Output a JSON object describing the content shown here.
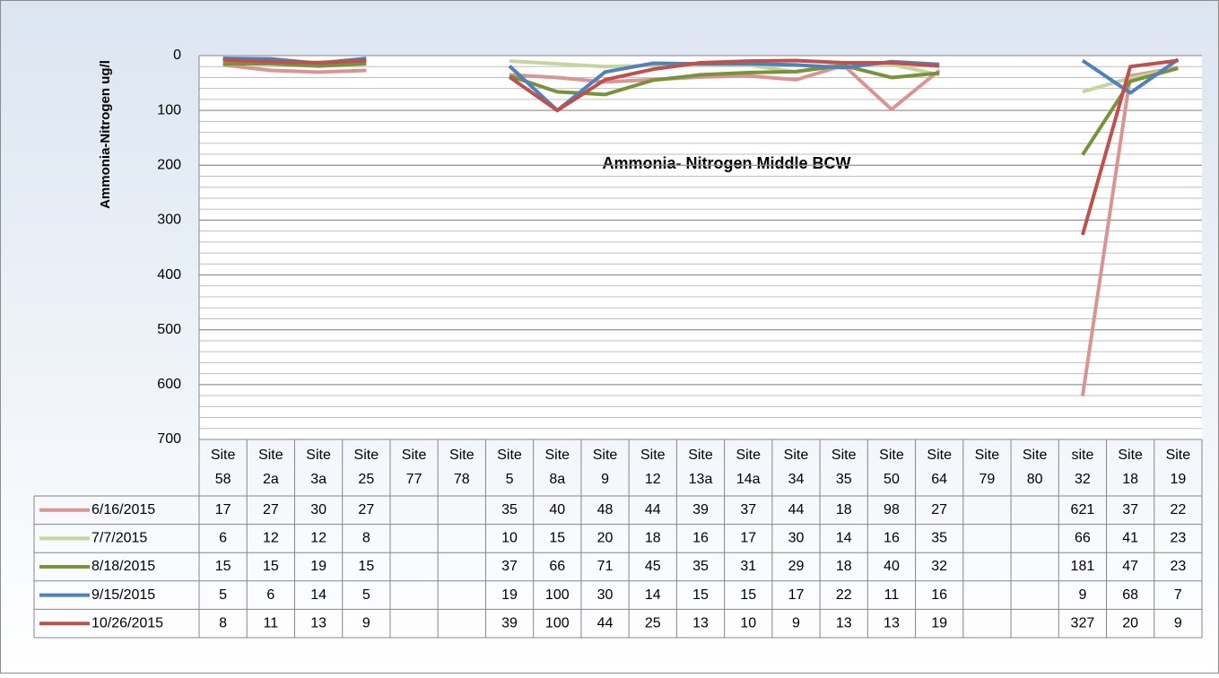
{
  "chart_data": {
    "type": "line",
    "title": "Ammonia- Nitrogen Middle BCW",
    "y_label": "Ammonia-Nitrogen ug/l",
    "categories": [
      "Site 58",
      "Site 2a",
      "Site 3a",
      "Site 25",
      "Site 77",
      "Site 78",
      "Site 5",
      "Site 8a",
      "Site 9",
      "Site 12",
      "Site 13a",
      "Site 14a",
      "Site 34",
      "Site 35",
      "Site 50",
      "Site 64",
      "Site 79",
      "Site 80",
      "site 32",
      "Site 18",
      "Site 19"
    ],
    "series": [
      {
        "name": "6/16/2015",
        "color": "#d99594",
        "values": [
          17,
          27,
          30,
          27,
          null,
          null,
          35,
          40,
          48,
          44,
          39,
          37,
          44,
          18,
          98,
          27,
          null,
          null,
          621,
          37,
          22
        ]
      },
      {
        "name": "7/7/2015",
        "color": "#c3d69b",
        "values": [
          6,
          12,
          12,
          8,
          null,
          null,
          10,
          15,
          20,
          18,
          16,
          17,
          30,
          14,
          16,
          35,
          null,
          null,
          66,
          41,
          23
        ]
      },
      {
        "name": "8/18/2015",
        "color": "#77933c",
        "values": [
          15,
          15,
          19,
          15,
          null,
          null,
          37,
          66,
          71,
          45,
          35,
          31,
          29,
          18,
          40,
          32,
          null,
          null,
          181,
          47,
          23
        ]
      },
      {
        "name": "9/15/2015",
        "color": "#4f81bd",
        "values": [
          5,
          6,
          14,
          5,
          null,
          null,
          19,
          100,
          30,
          14,
          15,
          15,
          17,
          22,
          11,
          16,
          null,
          null,
          9,
          68,
          7
        ]
      },
      {
        "name": "10/26/2015",
        "color": "#c0504d",
        "values": [
          8,
          11,
          13,
          9,
          null,
          null,
          39,
          100,
          44,
          25,
          13,
          10,
          9,
          13,
          13,
          19,
          null,
          null,
          327,
          20,
          9
        ]
      }
    ],
    "ylim": [
      0,
      700
    ],
    "yticks": [
      0,
      100,
      200,
      300,
      400,
      500,
      600,
      700
    ],
    "y_reversed": true,
    "grid": true,
    "minor_grid_step": 20,
    "legend": "data-table"
  }
}
